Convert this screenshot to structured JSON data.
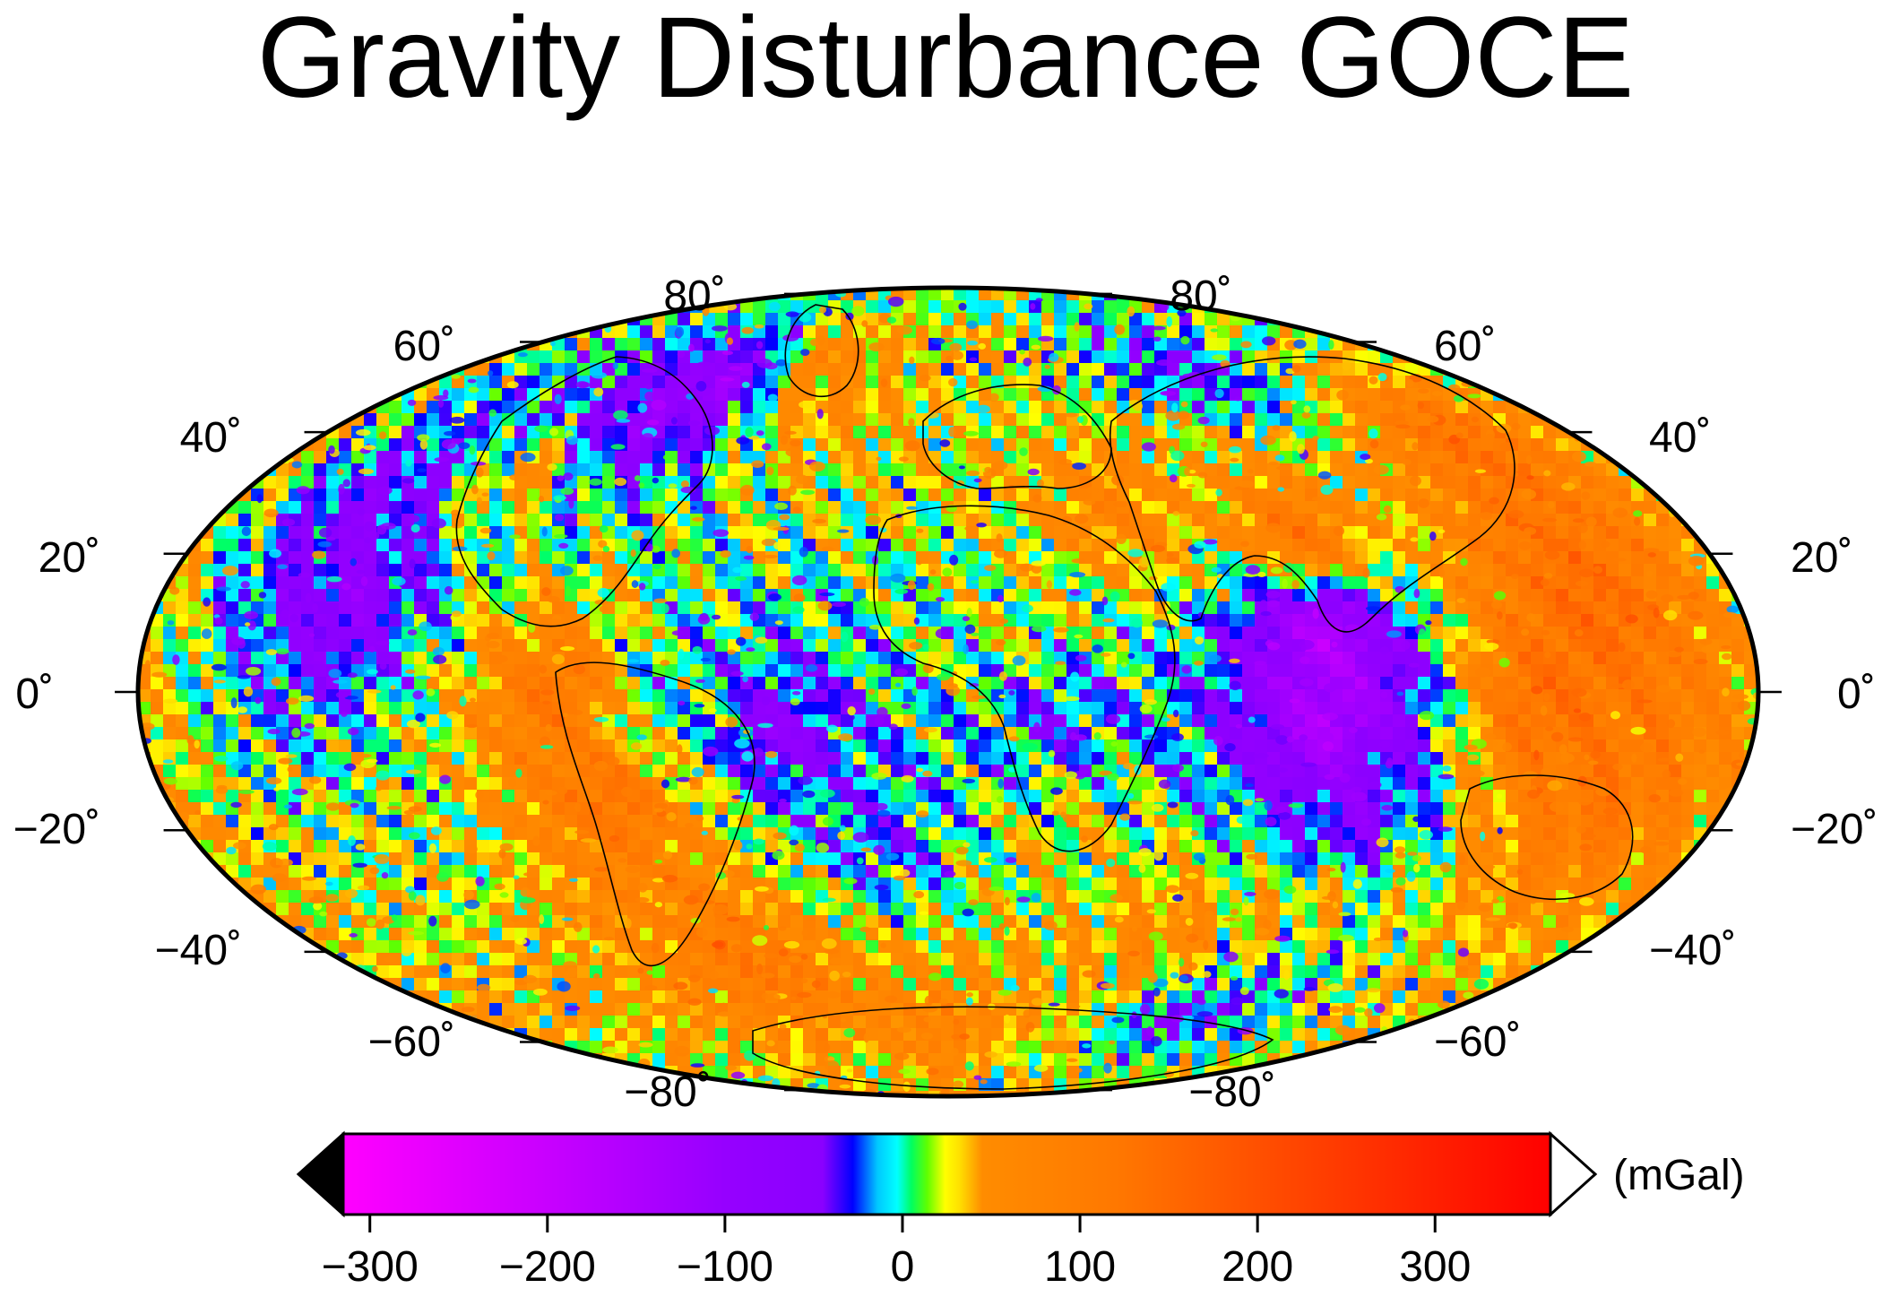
{
  "map": {
    "title": "Gravity Disturbance GOCE",
    "projection": "hammer",
    "colors": {
      "frame": "#000000",
      "background": "#ffffff",
      "coastline": "#000000"
    }
  },
  "lat_labels": {
    "left": [
      "80˚",
      "60˚",
      "40˚",
      "20˚",
      "0˚",
      "−20˚",
      "−40˚",
      "−60˚",
      "−80˚"
    ],
    "right": [
      "80˚",
      "60˚",
      "40˚",
      "20˚",
      "0˚",
      "−20˚",
      "−40˚",
      "−60˚",
      "−80˚"
    ],
    "values": [
      80,
      60,
      40,
      20,
      0,
      -20,
      -40,
      -60,
      -80
    ]
  },
  "colorbar": {
    "unit": "(mGal)",
    "range": [
      -315,
      365
    ],
    "ticks": [
      -300,
      -200,
      -100,
      0,
      100,
      200,
      300
    ],
    "tick_labels": [
      "−300",
      "−200",
      "−100",
      "0",
      "100",
      "200",
      "300"
    ],
    "below_range_color": "#000000",
    "above_range_color": "#ffffff",
    "stops": [
      {
        "value": -315,
        "color": "#ff00ff"
      },
      {
        "value": -200,
        "color": "#c800ff"
      },
      {
        "value": -100,
        "color": "#9600ff"
      },
      {
        "value": -45,
        "color": "#8a00ff"
      },
      {
        "value": -28,
        "color": "#0000ff"
      },
      {
        "value": -14,
        "color": "#00c8ff"
      },
      {
        "value": -3,
        "color": "#00ffff"
      },
      {
        "value": 5,
        "color": "#00ff60"
      },
      {
        "value": 14,
        "color": "#60ff00"
      },
      {
        "value": 24,
        "color": "#ffff00"
      },
      {
        "value": 32,
        "color": "#ffe000"
      },
      {
        "value": 45,
        "color": "#ff8c00"
      },
      {
        "value": 120,
        "color": "#ff7800"
      },
      {
        "value": 200,
        "color": "#ff5000"
      },
      {
        "value": 365,
        "color": "#ff0000"
      }
    ]
  },
  "chart_data": {
    "type": "heatmap",
    "title": "Gravity Disturbance GOCE",
    "colorbar_label": "(mGal)",
    "colorbar_range": [
      -315,
      365
    ],
    "colorbar_ticks": [
      -300,
      -200,
      -100,
      0,
      100,
      200,
      300
    ],
    "latitude_ticks": [
      80,
      60,
      40,
      20,
      0,
      -20,
      -40,
      -60,
      -80
    ],
    "anomaly_fields": [
      {
        "lat": 60,
        "lon": -40,
        "value": 60
      },
      {
        "lat": 70,
        "lon": -60,
        "value": 90
      },
      {
        "lat": 55,
        "lon": -95,
        "value": -90
      },
      {
        "lat": 62,
        "lon": -88,
        "value": -120
      },
      {
        "lat": 65,
        "lon": 100,
        "value": -40
      },
      {
        "lat": 30,
        "lon": 80,
        "value": 120
      },
      {
        "lat": 37,
        "lon": 40,
        "value": 80
      },
      {
        "lat": 10,
        "lon": 78,
        "value": -160
      },
      {
        "lat": -5,
        "lon": 78,
        "value": -150
      },
      {
        "lat": -25,
        "lon": 90,
        "value": -60
      },
      {
        "lat": 0,
        "lon": 125,
        "value": 140
      },
      {
        "lat": -15,
        "lon": 145,
        "value": 120
      },
      {
        "lat": 15,
        "lon": 140,
        "value": 150
      },
      {
        "lat": 40,
        "lon": 145,
        "value": 130
      },
      {
        "lat": 15,
        "lon": 15,
        "value": 20
      },
      {
        "lat": -5,
        "lon": 22,
        "value": -30
      },
      {
        "lat": -30,
        "lon": 25,
        "value": 30
      },
      {
        "lat": -8,
        "lon": -35,
        "value": -70
      },
      {
        "lat": -30,
        "lon": -15,
        "value": -30
      },
      {
        "lat": 5,
        "lon": -55,
        "value": -10
      },
      {
        "lat": -5,
        "lon": -60,
        "value": 10
      },
      {
        "lat": -20,
        "lon": -72,
        "value": 130
      },
      {
        "lat": 0,
        "lon": -80,
        "value": 120
      },
      {
        "lat": 40,
        "lon": -110,
        "value": 50
      },
      {
        "lat": 15,
        "lon": -130,
        "value": -80
      },
      {
        "lat": 30,
        "lon": -140,
        "value": -60
      },
      {
        "lat": -20,
        "lon": -120,
        "value": 15
      },
      {
        "lat": -40,
        "lon": 90,
        "value": 40
      },
      {
        "lat": -48,
        "lon": 60,
        "value": 70
      },
      {
        "lat": -55,
        "lon": -60,
        "value": 110
      },
      {
        "lat": -65,
        "lon": 100,
        "value": -40
      },
      {
        "lat": -72,
        "lon": 0,
        "value": 80
      },
      {
        "lat": -80,
        "lon": 60,
        "value": 40
      },
      {
        "lat": 78,
        "lon": 0,
        "value": 20
      }
    ]
  }
}
